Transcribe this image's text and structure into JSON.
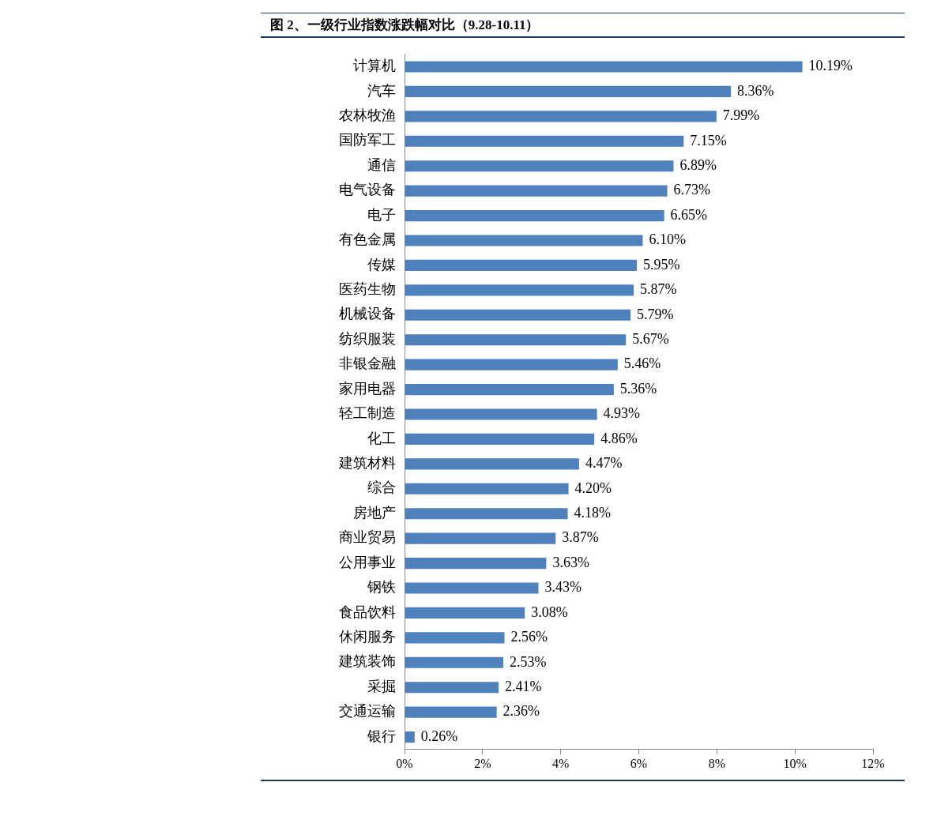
{
  "chart_data": {
    "type": "bar",
    "orientation": "horizontal",
    "title": "图 2、一级行业指数涨跌幅对比（9.28-10.11）",
    "categories": [
      "计算机",
      "汽车",
      "农林牧渔",
      "国防军工",
      "通信",
      "电气设备",
      "电子",
      "有色金属",
      "传媒",
      "医药生物",
      "机械设备",
      "纺织服装",
      "非银金融",
      "家用电器",
      "轻工制造",
      "化工",
      "建筑材料",
      "综合",
      "房地产",
      "商业贸易",
      "公用事业",
      "钢铁",
      "食品饮料",
      "休闲服务",
      "建筑装饰",
      "采掘",
      "交通运输",
      "银行"
    ],
    "values": [
      10.19,
      8.36,
      7.99,
      7.15,
      6.89,
      6.73,
      6.65,
      6.1,
      5.95,
      5.87,
      5.79,
      5.67,
      5.46,
      5.36,
      4.93,
      4.86,
      4.47,
      4.2,
      4.18,
      3.87,
      3.63,
      3.43,
      3.08,
      2.56,
      2.53,
      2.41,
      2.36,
      0.26
    ],
    "value_labels": [
      "10.19%",
      "8.36%",
      "7.99%",
      "7.15%",
      "6.89%",
      "6.73%",
      "6.65%",
      "6.10%",
      "5.95%",
      "5.87%",
      "5.79%",
      "5.67%",
      "5.46%",
      "5.36%",
      "4.93%",
      "4.86%",
      "4.47%",
      "4.20%",
      "4.18%",
      "3.87%",
      "3.63%",
      "3.43%",
      "3.08%",
      "2.56%",
      "2.53%",
      "2.41%",
      "2.36%",
      "0.26%"
    ],
    "color": "#4f81bd",
    "xlim": [
      0,
      12
    ],
    "xticks": [
      {
        "value": 0,
        "label": "0%"
      },
      {
        "value": 2,
        "label": "2%"
      },
      {
        "value": 4,
        "label": "4%"
      },
      {
        "value": 6,
        "label": "6%"
      },
      {
        "value": 8,
        "label": "8%"
      },
      {
        "value": 10,
        "label": "10%"
      },
      {
        "value": 12,
        "label": "12%"
      }
    ],
    "grid": false,
    "legend": false
  }
}
